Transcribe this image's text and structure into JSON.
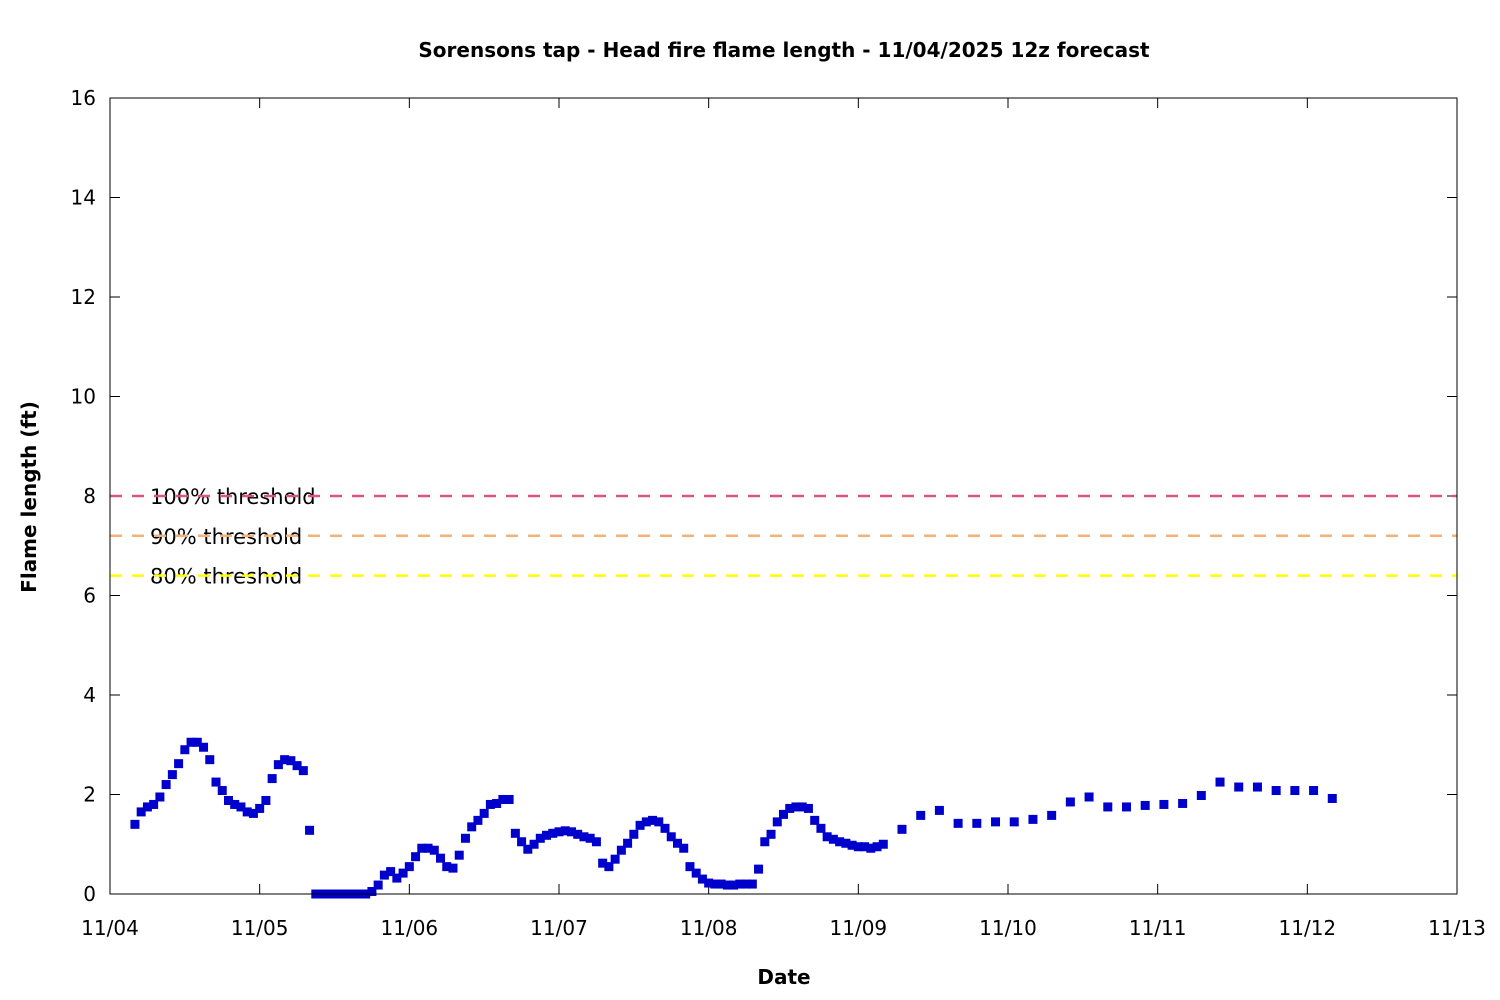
{
  "chart_data": {
    "type": "scatter",
    "title": "Sorensons tap - Head fire flame length - 11/04/2025 12z forecast",
    "xlabel": "Date",
    "ylabel": "Flame length (ft)",
    "xlim": [
      "11/04",
      "11/13"
    ],
    "ylim": [
      0,
      16
    ],
    "x_ticks": [
      "11/04",
      "11/05",
      "11/06",
      "11/07",
      "11/08",
      "11/09",
      "11/10",
      "11/11",
      "11/12",
      "11/13"
    ],
    "y_ticks": [
      0,
      2,
      4,
      6,
      8,
      10,
      12,
      14,
      16
    ],
    "grid": false,
    "series_color": "#0000cc",
    "thresholds": [
      {
        "label": "100% threshold",
        "value": 8.0,
        "color": "#d6587a"
      },
      {
        "label": "90% threshold",
        "value": 7.2,
        "color": "#f2b27a"
      },
      {
        "label": "80% threshold",
        "value": 6.4,
        "color": "#ffff00"
      }
    ],
    "points": [
      {
        "x": "11/04 04:00",
        "y": 1.4
      },
      {
        "x": "11/04 05:00",
        "y": 1.65
      },
      {
        "x": "11/04 06:00",
        "y": 1.75
      },
      {
        "x": "11/04 07:00",
        "y": 1.8
      },
      {
        "x": "11/04 08:00",
        "y": 1.95
      },
      {
        "x": "11/04 09:00",
        "y": 2.2
      },
      {
        "x": "11/04 10:00",
        "y": 2.4
      },
      {
        "x": "11/04 11:00",
        "y": 2.62
      },
      {
        "x": "11/04 12:00",
        "y": 2.9
      },
      {
        "x": "11/04 13:00",
        "y": 3.05
      },
      {
        "x": "11/04 14:00",
        "y": 3.05
      },
      {
        "x": "11/04 15:00",
        "y": 2.95
      },
      {
        "x": "11/04 16:00",
        "y": 2.7
      },
      {
        "x": "11/04 17:00",
        "y": 2.25
      },
      {
        "x": "11/04 18:00",
        "y": 2.08
      },
      {
        "x": "11/04 19:00",
        "y": 1.88
      },
      {
        "x": "11/04 20:00",
        "y": 1.8
      },
      {
        "x": "11/04 21:00",
        "y": 1.75
      },
      {
        "x": "11/04 22:00",
        "y": 1.65
      },
      {
        "x": "11/04 23:00",
        "y": 1.62
      },
      {
        "x": "11/05 00:00",
        "y": 1.72
      },
      {
        "x": "11/05 01:00",
        "y": 1.88
      },
      {
        "x": "11/05 02:00",
        "y": 2.32
      },
      {
        "x": "11/05 03:00",
        "y": 2.6
      },
      {
        "x": "11/05 04:00",
        "y": 2.7
      },
      {
        "x": "11/05 05:00",
        "y": 2.68
      },
      {
        "x": "11/05 06:00",
        "y": 2.58
      },
      {
        "x": "11/05 07:00",
        "y": 2.48
      },
      {
        "x": "11/05 08:00",
        "y": 1.28
      },
      {
        "x": "11/05 09:00",
        "y": 0.0
      },
      {
        "x": "11/05 10:00",
        "y": 0.0
      },
      {
        "x": "11/05 11:00",
        "y": 0.0
      },
      {
        "x": "11/05 12:00",
        "y": 0.0
      },
      {
        "x": "11/05 13:00",
        "y": 0.0
      },
      {
        "x": "11/05 14:00",
        "y": 0.0
      },
      {
        "x": "11/05 15:00",
        "y": 0.0
      },
      {
        "x": "11/05 16:00",
        "y": 0.0
      },
      {
        "x": "11/05 17:00",
        "y": 0.0
      },
      {
        "x": "11/05 18:00",
        "y": 0.05
      },
      {
        "x": "11/05 19:00",
        "y": 0.18
      },
      {
        "x": "11/05 20:00",
        "y": 0.38
      },
      {
        "x": "11/05 21:00",
        "y": 0.45
      },
      {
        "x": "11/05 22:00",
        "y": 0.32
      },
      {
        "x": "11/05 23:00",
        "y": 0.42
      },
      {
        "x": "11/06 00:00",
        "y": 0.55
      },
      {
        "x": "11/06 01:00",
        "y": 0.75
      },
      {
        "x": "11/06 02:00",
        "y": 0.92
      },
      {
        "x": "11/06 03:00",
        "y": 0.92
      },
      {
        "x": "11/06 04:00",
        "y": 0.88
      },
      {
        "x": "11/06 05:00",
        "y": 0.72
      },
      {
        "x": "11/06 06:00",
        "y": 0.55
      },
      {
        "x": "11/06 07:00",
        "y": 0.52
      },
      {
        "x": "11/06 08:00",
        "y": 0.78
      },
      {
        "x": "11/06 09:00",
        "y": 1.12
      },
      {
        "x": "11/06 10:00",
        "y": 1.35
      },
      {
        "x": "11/06 11:00",
        "y": 1.48
      },
      {
        "x": "11/06 12:00",
        "y": 1.62
      },
      {
        "x": "11/06 13:00",
        "y": 1.8
      },
      {
        "x": "11/06 14:00",
        "y": 1.82
      },
      {
        "x": "11/06 15:00",
        "y": 1.9
      },
      {
        "x": "11/06 16:00",
        "y": 1.9
      },
      {
        "x": "11/06 17:00",
        "y": 1.22
      },
      {
        "x": "11/06 18:00",
        "y": 1.05
      },
      {
        "x": "11/06 19:00",
        "y": 0.9
      },
      {
        "x": "11/06 20:00",
        "y": 1.0
      },
      {
        "x": "11/06 21:00",
        "y": 1.12
      },
      {
        "x": "11/06 22:00",
        "y": 1.18
      },
      {
        "x": "11/06 23:00",
        "y": 1.22
      },
      {
        "x": "11/07 00:00",
        "y": 1.25
      },
      {
        "x": "11/07 01:00",
        "y": 1.27
      },
      {
        "x": "11/07 02:00",
        "y": 1.25
      },
      {
        "x": "11/07 03:00",
        "y": 1.2
      },
      {
        "x": "11/07 04:00",
        "y": 1.15
      },
      {
        "x": "11/07 05:00",
        "y": 1.12
      },
      {
        "x": "11/07 06:00",
        "y": 1.05
      },
      {
        "x": "11/07 07:00",
        "y": 0.62
      },
      {
        "x": "11/07 08:00",
        "y": 0.55
      },
      {
        "x": "11/07 09:00",
        "y": 0.7
      },
      {
        "x": "11/07 10:00",
        "y": 0.88
      },
      {
        "x": "11/07 11:00",
        "y": 1.02
      },
      {
        "x": "11/07 12:00",
        "y": 1.2
      },
      {
        "x": "11/07 13:00",
        "y": 1.38
      },
      {
        "x": "11/07 14:00",
        "y": 1.45
      },
      {
        "x": "11/07 15:00",
        "y": 1.48
      },
      {
        "x": "11/07 16:00",
        "y": 1.45
      },
      {
        "x": "11/07 17:00",
        "y": 1.32
      },
      {
        "x": "11/07 18:00",
        "y": 1.15
      },
      {
        "x": "11/07 19:00",
        "y": 1.02
      },
      {
        "x": "11/07 20:00",
        "y": 0.92
      },
      {
        "x": "11/07 21:00",
        "y": 0.55
      },
      {
        "x": "11/07 22:00",
        "y": 0.42
      },
      {
        "x": "11/07 23:00",
        "y": 0.3
      },
      {
        "x": "11/08 00:00",
        "y": 0.22
      },
      {
        "x": "11/08 01:00",
        "y": 0.2
      },
      {
        "x": "11/08 02:00",
        "y": 0.2
      },
      {
        "x": "11/08 03:00",
        "y": 0.18
      },
      {
        "x": "11/08 04:00",
        "y": 0.18
      },
      {
        "x": "11/08 05:00",
        "y": 0.2
      },
      {
        "x": "11/08 06:00",
        "y": 0.2
      },
      {
        "x": "11/08 07:00",
        "y": 0.2
      },
      {
        "x": "11/08 08:00",
        "y": 0.5
      },
      {
        "x": "11/08 09:00",
        "y": 1.05
      },
      {
        "x": "11/08 10:00",
        "y": 1.2
      },
      {
        "x": "11/08 11:00",
        "y": 1.45
      },
      {
        "x": "11/08 12:00",
        "y": 1.6
      },
      {
        "x": "11/08 13:00",
        "y": 1.72
      },
      {
        "x": "11/08 14:00",
        "y": 1.75
      },
      {
        "x": "11/08 15:00",
        "y": 1.75
      },
      {
        "x": "11/08 16:00",
        "y": 1.72
      },
      {
        "x": "11/08 17:00",
        "y": 1.48
      },
      {
        "x": "11/08 18:00",
        "y": 1.32
      },
      {
        "x": "11/08 19:00",
        "y": 1.15
      },
      {
        "x": "11/08 20:00",
        "y": 1.1
      },
      {
        "x": "11/08 21:00",
        "y": 1.05
      },
      {
        "x": "11/08 22:00",
        "y": 1.02
      },
      {
        "x": "11/08 23:00",
        "y": 0.98
      },
      {
        "x": "11/09 00:00",
        "y": 0.95
      },
      {
        "x": "11/09 01:00",
        "y": 0.95
      },
      {
        "x": "11/09 02:00",
        "y": 0.92
      },
      {
        "x": "11/09 03:00",
        "y": 0.95
      },
      {
        "x": "11/09 04:00",
        "y": 1.0
      },
      {
        "x": "11/09 07:00",
        "y": 1.3
      },
      {
        "x": "11/09 10:00",
        "y": 1.58
      },
      {
        "x": "11/09 13:00",
        "y": 1.68
      },
      {
        "x": "11/09 16:00",
        "y": 1.42
      },
      {
        "x": "11/09 19:00",
        "y": 1.42
      },
      {
        "x": "11/09 22:00",
        "y": 1.45
      },
      {
        "x": "11/10 01:00",
        "y": 1.45
      },
      {
        "x": "11/10 04:00",
        "y": 1.5
      },
      {
        "x": "11/10 07:00",
        "y": 1.58
      },
      {
        "x": "11/10 10:00",
        "y": 1.85
      },
      {
        "x": "11/10 13:00",
        "y": 1.95
      },
      {
        "x": "11/10 16:00",
        "y": 1.75
      },
      {
        "x": "11/10 19:00",
        "y": 1.75
      },
      {
        "x": "11/10 22:00",
        "y": 1.78
      },
      {
        "x": "11/11 01:00",
        "y": 1.8
      },
      {
        "x": "11/11 04:00",
        "y": 1.82
      },
      {
        "x": "11/11 07:00",
        "y": 1.98
      },
      {
        "x": "11/11 10:00",
        "y": 2.25
      },
      {
        "x": "11/11 13:00",
        "y": 2.15
      },
      {
        "x": "11/11 16:00",
        "y": 2.15
      },
      {
        "x": "11/11 19:00",
        "y": 2.08
      },
      {
        "x": "11/11 22:00",
        "y": 2.08
      },
      {
        "x": "11/12 01:00",
        "y": 2.08
      },
      {
        "x": "11/12 04:00",
        "y": 1.92
      }
    ]
  }
}
